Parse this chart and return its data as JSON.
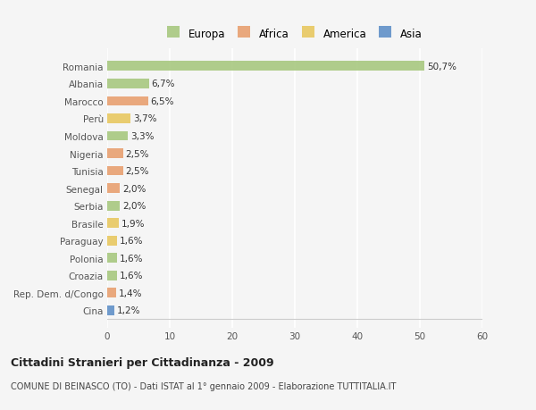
{
  "categories": [
    "Romania",
    "Albania",
    "Marocco",
    "Perù",
    "Moldova",
    "Nigeria",
    "Tunisia",
    "Senegal",
    "Serbia",
    "Brasile",
    "Paraguay",
    "Polonia",
    "Croazia",
    "Rep. Dem. d/Congo",
    "Cina"
  ],
  "values": [
    50.7,
    6.7,
    6.5,
    3.7,
    3.3,
    2.5,
    2.5,
    2.0,
    2.0,
    1.9,
    1.6,
    1.6,
    1.6,
    1.4,
    1.2
  ],
  "labels": [
    "50,7%",
    "6,7%",
    "6,5%",
    "3,7%",
    "3,3%",
    "2,5%",
    "2,5%",
    "2,0%",
    "2,0%",
    "1,9%",
    "1,6%",
    "1,6%",
    "1,6%",
    "1,4%",
    "1,2%"
  ],
  "colors": [
    "#a8c880",
    "#a8c880",
    "#e8a070",
    "#e8c860",
    "#a8c880",
    "#e8a070",
    "#e8a070",
    "#e8a070",
    "#a8c880",
    "#e8c860",
    "#e8c860",
    "#a8c880",
    "#a8c880",
    "#e8a070",
    "#6090c8"
  ],
  "legend_labels": [
    "Europa",
    "Africa",
    "America",
    "Asia"
  ],
  "legend_colors": [
    "#a8c880",
    "#e8a070",
    "#e8c860",
    "#6090c8"
  ],
  "xlim": [
    0,
    60
  ],
  "xticks": [
    0,
    10,
    20,
    30,
    40,
    50,
    60
  ],
  "title": "Cittadini Stranieri per Cittadinanza - 2009",
  "subtitle": "COMUNE DI BEINASCO (TO) - Dati ISTAT al 1° gennaio 2009 - Elaborazione TUTTITALIA.IT",
  "bg_color": "#f5f5f5",
  "bar_height": 0.55,
  "label_fontsize": 7.5,
  "tick_fontsize": 7.5,
  "legend_fontsize": 8.5,
  "title_fontsize": 9.0,
  "subtitle_fontsize": 7.0
}
